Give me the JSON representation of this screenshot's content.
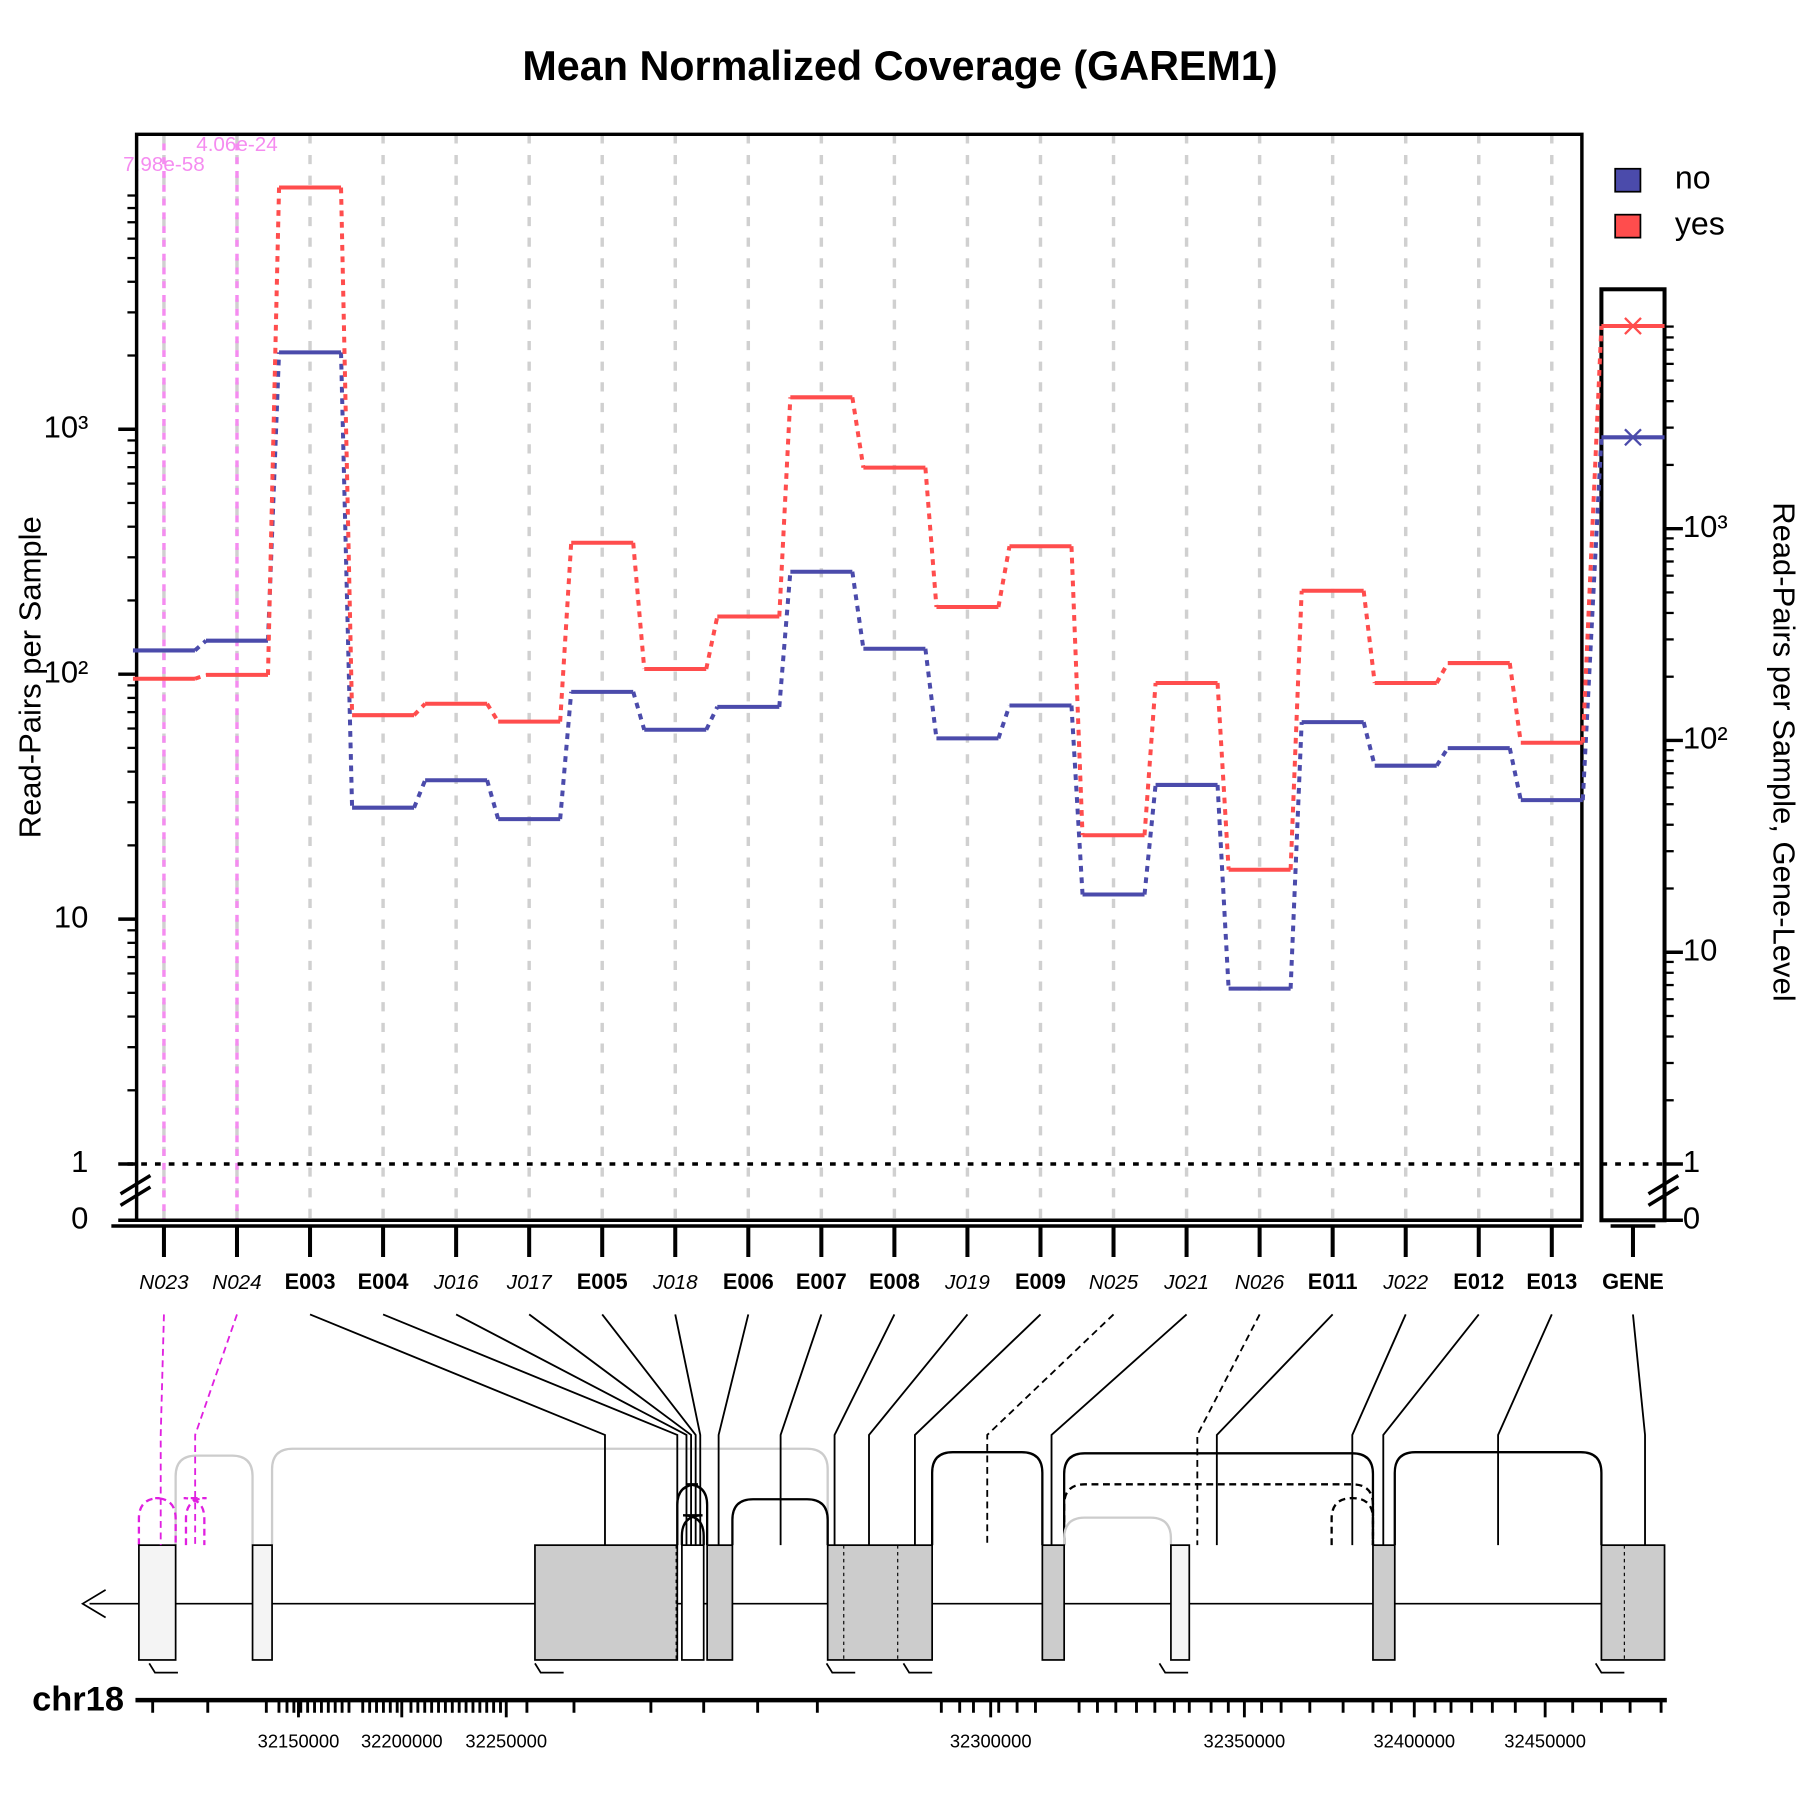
{
  "chart_data": {
    "type": "line",
    "title": "Mean Normalized Coverage (GAREM1)",
    "y_label": "Read-Pairs per Sample",
    "y2_label": "Read-Pairs per Sample, Gene-Level",
    "categories": [
      "N023",
      "N024",
      "E003",
      "E004",
      "J016",
      "J017",
      "E005",
      "J018",
      "E006",
      "E007",
      "E008",
      "J019",
      "E009",
      "N025",
      "J021",
      "N026",
      "E011",
      "J022",
      "E012",
      "E013"
    ],
    "gene_label": "GENE",
    "series": [
      {
        "name": "no",
        "color": "#4b4bab",
        "values": [
          125,
          137,
          2060,
          28.5,
          36.9,
          25.6,
          84.7,
          59.3,
          73.5,
          262,
          127,
          54.7,
          74.5,
          12.6,
          35.3,
          5.2,
          63.7,
          42.3,
          49.9,
          30.6
        ],
        "gene_value": 2700
      },
      {
        "name": "yes",
        "color": "#ff4d4d",
        "values": [
          95.8,
          99.3,
          9700,
          68,
          75.7,
          64,
          344,
          105,
          172,
          1350,
          697,
          188,
          333,
          22,
          92,
          15.9,
          219,
          92,
          111,
          52.5
        ],
        "gene_value": 9060
      }
    ],
    "ylim": [
      0,
      16000
    ],
    "yticks": [
      0,
      1,
      10,
      {
        "value": 100,
        "label": "10²"
      },
      {
        "value": 1000,
        "label": "10³"
      }
    ],
    "y2lim": [
      0,
      13500
    ],
    "y2ticks": [
      0,
      1,
      10,
      {
        "value": 100,
        "label": "10²"
      },
      {
        "value": 1000,
        "label": "10³"
      }
    ],
    "log_scale": true,
    "reference_line": 1,
    "annotations": [
      {
        "text": "7.98e-58",
        "category": "N023"
      },
      {
        "text": "4.06e-24",
        "category": "N024"
      }
    ],
    "annotation_color": "#f58cf0",
    "legend": "top-right",
    "grid": true,
    "genome_axis": {
      "label": "chr18",
      "ticks": [
        32150000,
        32200000,
        32250000,
        32300000,
        32350000,
        32400000,
        32450000
      ]
    }
  }
}
